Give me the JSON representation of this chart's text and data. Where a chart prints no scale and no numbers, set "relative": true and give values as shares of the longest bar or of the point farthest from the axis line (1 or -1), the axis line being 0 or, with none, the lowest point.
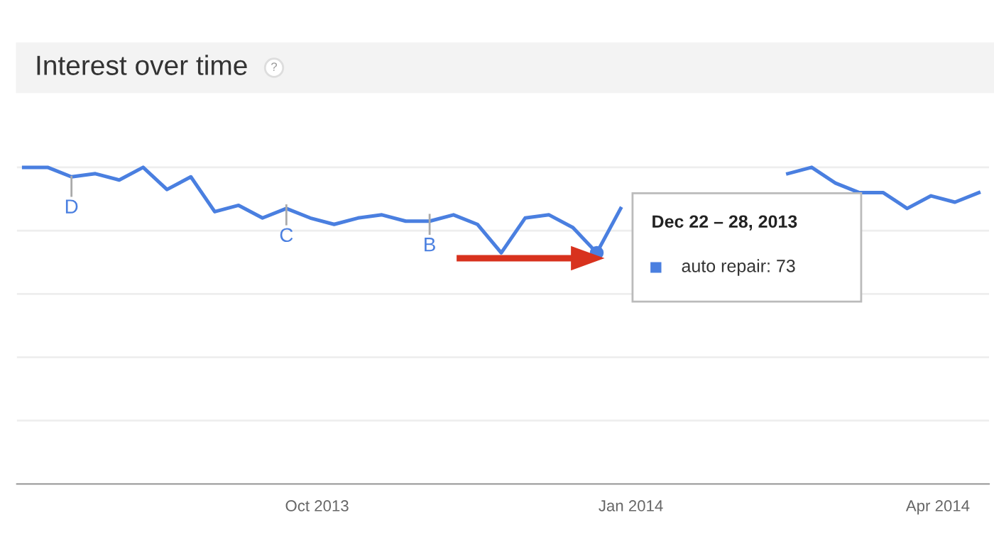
{
  "chart_data": {
    "type": "line",
    "title": "Interest over time",
    "relative": true,
    "x": [
      "2013-07-07",
      "2013-07-14",
      "2013-07-21",
      "2013-07-28",
      "2013-08-04",
      "2013-08-11",
      "2013-08-18",
      "2013-08-25",
      "2013-09-01",
      "2013-09-08",
      "2013-09-15",
      "2013-09-22",
      "2013-09-29",
      "2013-10-06",
      "2013-10-13",
      "2013-10-20",
      "2013-10-27",
      "2013-11-03",
      "2013-11-10",
      "2013-11-17",
      "2013-11-24",
      "2013-12-01",
      "2013-12-08",
      "2013-12-15",
      "2013-12-22",
      "2013-12-29",
      "2014-01-05",
      "2014-01-12",
      "2014-01-19",
      "2014-01-26",
      "2014-02-02",
      "2014-02-09",
      "2014-02-16",
      "2014-02-23",
      "2014-03-02",
      "2014-03-09",
      "2014-03-16",
      "2014-03-23",
      "2014-03-30",
      "2014-04-06",
      "2014-04-13"
    ],
    "series": [
      {
        "color": "#4a7fe0",
        "values": [
          1.0,
          1.0,
          0.97,
          0.98,
          0.96,
          1.0,
          0.93,
          0.97,
          0.86,
          0.88,
          0.84,
          0.87,
          0.84,
          0.82,
          0.84,
          0.85,
          0.83,
          0.83,
          0.85,
          0.82,
          0.73,
          0.84,
          0.85,
          0.81,
          0.73,
          0.87,
          null,
          null,
          null,
          null,
          null,
          null,
          0.98,
          1.0,
          0.95,
          0.92,
          0.92,
          0.87,
          0.91,
          0.89,
          0.92
        ]
      }
    ],
    "xlim": [
      "2013-07-05",
      "2014-04-16"
    ],
    "xticks": [
      {
        "value": "2013-10-01",
        "label": "Oct 2013"
      },
      {
        "value": "2014-01-01",
        "label": "Jan 2014"
      },
      {
        "value": "2014-04-01",
        "label": "Apr 2014"
      }
    ],
    "grid": "y",
    "line_style": "solid",
    "marker": "none",
    "annotations": [
      "?",
      {
        "text": "D",
        "x": "2013-07-21",
        "y": 0.97
      },
      {
        "text": "C",
        "x": "2013-09-22",
        "y": 0.88
      },
      {
        "text": "B",
        "x": "2013-11-03",
        "y": 0.85
      },
      "Dec 22 – 28, 2013",
      "auto repair: 73"
    ]
  }
}
